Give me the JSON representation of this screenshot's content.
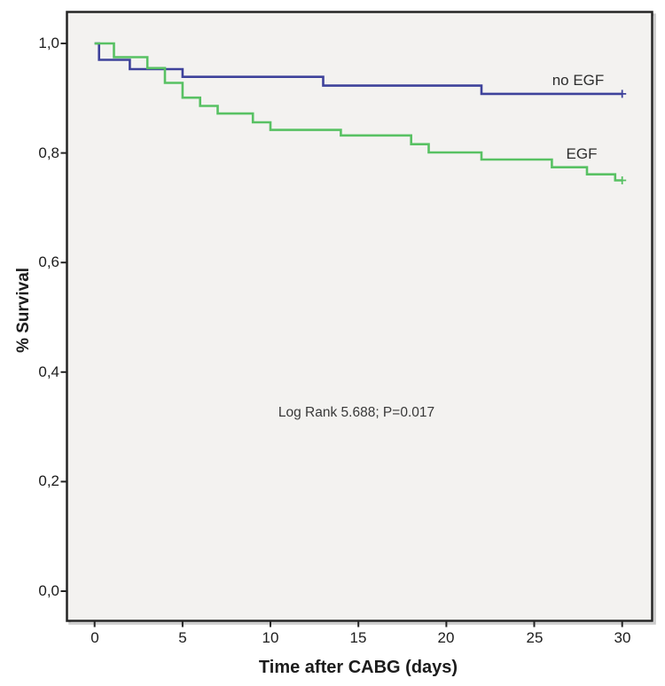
{
  "figure": {
    "y_axis_title": "% Survival",
    "x_axis_title": "Time after CABG (days)",
    "y_tick_labels": [
      "1,0",
      "0,8",
      "0,6",
      "0,4",
      "0,2",
      "0,0"
    ],
    "x_tick_labels": [
      "0",
      "5",
      "10",
      "15",
      "20",
      "25",
      "30"
    ],
    "annotation": "Log Rank 5.688; P=0.017",
    "series_labels": {
      "no_egf": "no EGF",
      "egf": "EGF"
    }
  },
  "colors": {
    "no_egf_line": "#3e429b",
    "egf_line": "#58c163",
    "frame": "#242424",
    "frame_shadow": "#c9c9c9",
    "plot_background": "#f3f2f0",
    "text": "#1c1c1c"
  },
  "chart_data": {
    "type": "line",
    "subtype": "kaplan-meier-step",
    "title": "",
    "xlabel": "Time after CABG (days)",
    "ylabel": "% Survival",
    "xlim": [
      0,
      30
    ],
    "ylim": [
      0.0,
      1.0
    ],
    "x_tick_values": [
      0,
      5,
      10,
      15,
      20,
      25,
      30
    ],
    "y_tick_values": [
      1.0,
      0.8,
      0.6,
      0.4,
      0.2,
      0.0
    ],
    "grid": false,
    "legend_position": "labels-at-line-end",
    "annotation": {
      "text": "Log Rank 5.688; P=0.017",
      "x": 14.9,
      "y": 0.327
    },
    "series": [
      {
        "name": "no EGF",
        "color": "#3e429b",
        "points": [
          [
            0,
            1.0
          ],
          [
            0.25,
            1.0
          ],
          [
            0.25,
            0.97
          ],
          [
            2,
            0.97
          ],
          [
            2,
            0.953
          ],
          [
            5,
            0.953
          ],
          [
            5,
            0.939
          ],
          [
            13,
            0.939
          ],
          [
            13,
            0.923
          ],
          [
            22,
            0.923
          ],
          [
            22,
            0.908
          ],
          [
            30,
            0.908
          ]
        ],
        "censored": [
          [
            30,
            0.908
          ]
        ]
      },
      {
        "name": "EGF",
        "color": "#58c163",
        "points": [
          [
            0,
            1.0
          ],
          [
            1.1,
            1.0
          ],
          [
            1.1,
            0.975
          ],
          [
            3,
            0.975
          ],
          [
            3,
            0.955
          ],
          [
            4,
            0.955
          ],
          [
            4,
            0.928
          ],
          [
            5,
            0.928
          ],
          [
            5,
            0.901
          ],
          [
            6,
            0.901
          ],
          [
            6,
            0.886
          ],
          [
            7,
            0.886
          ],
          [
            7,
            0.872
          ],
          [
            9,
            0.872
          ],
          [
            9,
            0.856
          ],
          [
            10,
            0.856
          ],
          [
            10,
            0.842
          ],
          [
            14,
            0.842
          ],
          [
            14,
            0.832
          ],
          [
            18,
            0.832
          ],
          [
            18,
            0.816
          ],
          [
            19,
            0.816
          ],
          [
            19,
            0.801
          ],
          [
            22,
            0.801
          ],
          [
            22,
            0.788
          ],
          [
            26,
            0.788
          ],
          [
            26,
            0.774
          ],
          [
            28,
            0.774
          ],
          [
            28,
            0.761
          ],
          [
            29.6,
            0.761
          ],
          [
            29.6,
            0.75
          ],
          [
            30,
            0.75
          ]
        ],
        "censored": [
          [
            30,
            0.75
          ]
        ]
      }
    ]
  }
}
